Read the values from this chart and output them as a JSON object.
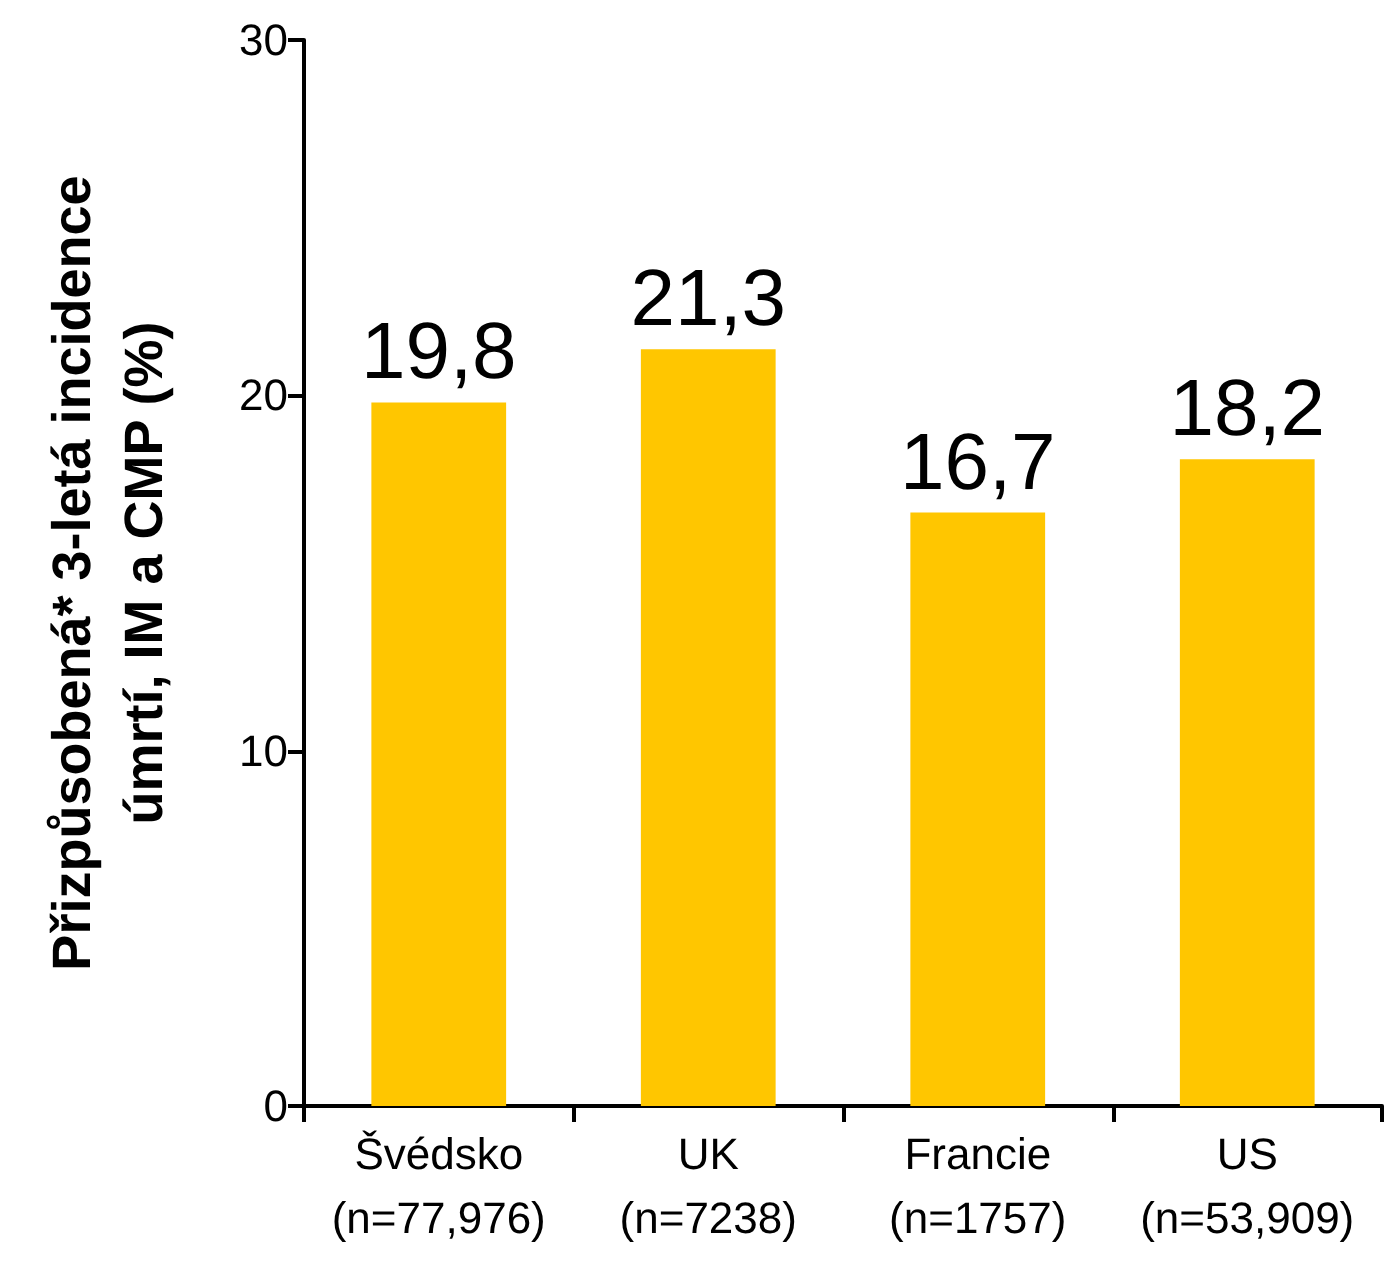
{
  "chart_data": {
    "type": "bar",
    "ylabel": "Přizpůsobená* 3-letá incidence\númrtí, IM a CMP (%)",
    "categories": [
      "Švédsko\n(n=77,976)",
      "UK\n(n=7238)",
      "Francie\n(n=1757)",
      "US\n(n=53,909)"
    ],
    "values": [
      19.8,
      21.3,
      16.7,
      18.2
    ],
    "value_labels": [
      "19,8",
      "21,3",
      "16,7",
      "18,2"
    ],
    "color": "#ffc600",
    "ylim": [
      0,
      30
    ],
    "yticks": [
      0,
      10,
      20,
      30
    ],
    "grid": false
  }
}
